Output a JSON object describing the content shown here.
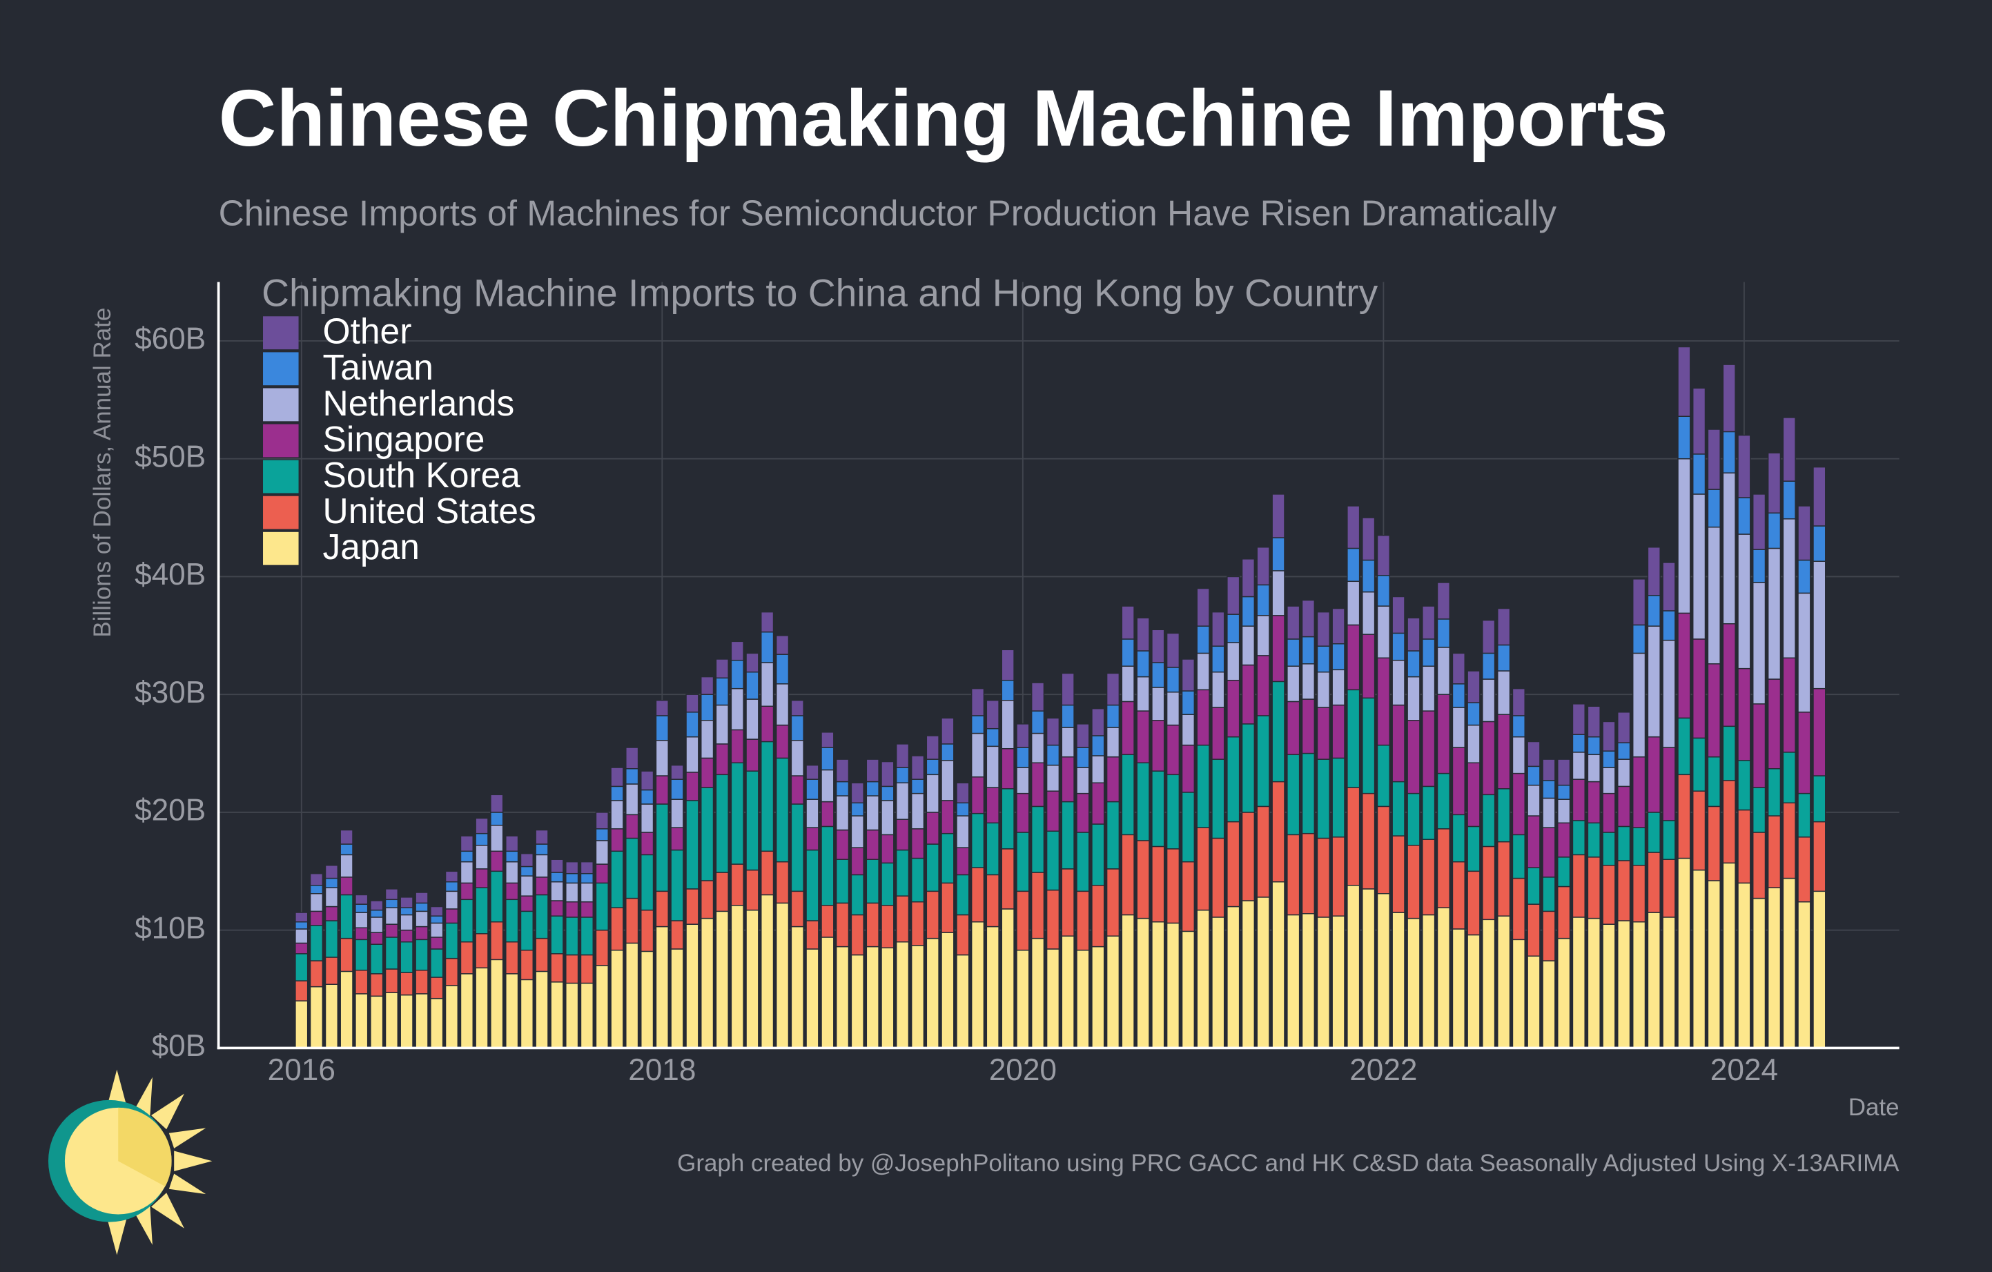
{
  "chart_data": {
    "type": "stacked_bar",
    "title": "Chinese Chipmaking Machine Imports",
    "subtitle": "Chinese Imports of Machines for Semiconductor Production Have Risen Dramatically",
    "legend_title": "Chipmaking Machine Imports to China and Hong Kong by Country",
    "ylabel": "Billions of Dollars, Annual Rate",
    "xlabel": "Date",
    "caption": "Graph created by @JosephPolitano using PRC GACC and HK C&SD data Seasonally Adjusted Using X-13ARIMA",
    "legend": "upper left",
    "grid": true,
    "xlim": [
      2015.54,
      2024.86
    ],
    "xticks": [
      2016,
      2018,
      2020,
      2022,
      2024
    ],
    "ylim": [
      0,
      65
    ],
    "yticks": [
      {
        "value": 0,
        "label": "$0B"
      },
      {
        "value": 10,
        "label": "$10B"
      },
      {
        "value": 20,
        "label": "$20B"
      },
      {
        "value": 30,
        "label": "$30B"
      },
      {
        "value": 40,
        "label": "$40B"
      },
      {
        "value": 50,
        "label": "$50B"
      },
      {
        "value": 60,
        "label": "$60B"
      }
    ],
    "x": [
      2016,
      2016.083,
      2016.167,
      2016.25,
      2016.333,
      2016.417,
      2016.5,
      2016.583,
      2016.667,
      2016.75,
      2016.833,
      2016.917,
      2017,
      2017.083,
      2017.167,
      2017.25,
      2017.333,
      2017.417,
      2017.5,
      2017.583,
      2017.667,
      2017.75,
      2017.833,
      2017.917,
      2018,
      2018.083,
      2018.167,
      2018.25,
      2018.333,
      2018.417,
      2018.5,
      2018.583,
      2018.667,
      2018.75,
      2018.833,
      2018.917,
      2019,
      2019.083,
      2019.167,
      2019.25,
      2019.333,
      2019.417,
      2019.5,
      2019.583,
      2019.667,
      2019.75,
      2019.833,
      2019.917,
      2020,
      2020.083,
      2020.167,
      2020.25,
      2020.333,
      2020.417,
      2020.5,
      2020.583,
      2020.667,
      2020.75,
      2020.833,
      2020.917,
      2021,
      2021.083,
      2021.167,
      2021.25,
      2021.333,
      2021.417,
      2021.5,
      2021.583,
      2021.667,
      2021.75,
      2021.833,
      2021.917,
      2022,
      2022.083,
      2022.167,
      2022.25,
      2022.333,
      2022.417,
      2022.5,
      2022.583,
      2022.667,
      2022.75,
      2022.833,
      2022.917,
      2023,
      2023.083,
      2023.167,
      2023.25,
      2023.333,
      2023.417,
      2023.5,
      2023.583,
      2023.667,
      2023.75,
      2023.833,
      2023.917,
      2024,
      2024.083,
      2024.167,
      2024.25,
      2024.333,
      2024.417
    ],
    "series": [
      {
        "name": "Japan",
        "color": "#fde78c",
        "values": [
          4.0,
          5.2,
          5.4,
          6.5,
          4.6,
          4.4,
          4.7,
          4.5,
          4.6,
          4.2,
          5.3,
          6.3,
          6.8,
          7.5,
          6.3,
          5.8,
          6.5,
          5.6,
          5.5,
          5.5,
          7.0,
          8.3,
          8.9,
          8.2,
          10.3,
          8.4,
          10.5,
          11.0,
          11.6,
          12.1,
          11.7,
          13.0,
          12.3,
          10.3,
          8.4,
          9.4,
          8.6,
          7.9,
          8.6,
          8.5,
          9.0,
          8.7,
          9.3,
          9.8,
          7.9,
          10.7,
          10.3,
          11.8,
          8.3,
          9.3,
          8.4,
          9.5,
          8.3,
          8.6,
          9.5,
          11.3,
          11.0,
          10.7,
          10.6,
          9.9,
          11.7,
          11.1,
          12.0,
          12.5,
          12.8,
          14.1,
          11.3,
          11.4,
          11.1,
          11.2,
          13.8,
          13.5,
          13.1,
          11.5,
          11.0,
          11.3,
          11.9,
          10.1,
          9.6,
          10.9,
          11.2,
          9.2,
          7.8,
          7.4,
          9.3,
          11.1,
          11.0,
          10.5,
          10.8,
          10.7,
          11.5,
          11.1,
          16.1,
          15.1,
          14.2,
          15.7,
          14.0,
          12.7,
          13.6,
          14.4,
          12.4,
          13.3
        ]
      },
      {
        "name": "United States",
        "color": "#ec5f50",
        "values": [
          1.7,
          2.2,
          2.3,
          2.8,
          2.0,
          1.9,
          2.0,
          1.9,
          2.0,
          1.8,
          2.3,
          2.7,
          2.9,
          3.2,
          2.7,
          2.5,
          2.8,
          2.4,
          2.4,
          2.4,
          3.0,
          3.6,
          3.8,
          3.5,
          3.0,
          2.4,
          3.0,
          3.2,
          3.3,
          3.5,
          3.4,
          3.7,
          3.5,
          3.0,
          2.4,
          2.7,
          3.7,
          3.4,
          3.7,
          3.6,
          3.9,
          3.7,
          4.0,
          4.2,
          3.4,
          4.6,
          4.4,
          5.1,
          5.0,
          5.6,
          5.0,
          5.7,
          5.0,
          5.2,
          5.7,
          6.8,
          6.6,
          6.4,
          6.3,
          5.9,
          7.0,
          6.7,
          7.2,
          7.5,
          7.7,
          8.5,
          6.8,
          6.8,
          6.7,
          6.7,
          8.3,
          8.1,
          7.4,
          6.5,
          6.2,
          6.4,
          6.7,
          5.7,
          5.4,
          6.2,
          6.3,
          5.2,
          4.4,
          4.2,
          4.4,
          5.3,
          5.2,
          5.0,
          5.1,
          4.8,
          5.1,
          4.9,
          7.1,
          6.7,
          6.3,
          7.0,
          6.2,
          5.6,
          6.1,
          6.4,
          5.5,
          5.9
        ]
      },
      {
        "name": "South Korea",
        "color": "#0aa39a",
        "values": [
          2.3,
          3.0,
          3.1,
          3.7,
          2.6,
          2.5,
          2.7,
          2.6,
          2.6,
          2.4,
          3.0,
          3.6,
          3.9,
          4.3,
          3.6,
          3.3,
          3.7,
          3.2,
          3.2,
          3.2,
          4.0,
          4.8,
          5.1,
          4.7,
          7.4,
          6.0,
          7.5,
          7.9,
          8.3,
          8.6,
          8.4,
          9.3,
          8.8,
          7.4,
          6.0,
          6.7,
          3.7,
          3.4,
          3.7,
          3.6,
          3.9,
          3.7,
          4.0,
          4.2,
          3.4,
          4.6,
          4.4,
          5.1,
          5.0,
          5.6,
          5.0,
          5.7,
          5.0,
          5.2,
          5.7,
          6.8,
          6.6,
          6.4,
          6.3,
          5.9,
          7.0,
          6.7,
          7.2,
          7.5,
          7.7,
          8.5,
          6.8,
          6.8,
          6.7,
          6.7,
          8.3,
          8.1,
          5.2,
          4.6,
          4.4,
          4.5,
          4.7,
          4.0,
          3.8,
          4.4,
          4.5,
          3.7,
          3.1,
          2.9,
          2.5,
          2.9,
          2.9,
          2.8,
          2.9,
          3.2,
          3.4,
          3.3,
          4.8,
          4.5,
          4.2,
          4.6,
          4.2,
          3.8,
          4.0,
          4.3,
          3.7,
          3.9
        ]
      },
      {
        "name": "Singapore",
        "color": "#9b2f8e",
        "values": [
          0.9,
          1.2,
          1.2,
          1.5,
          1.0,
          1.0,
          1.1,
          1.0,
          1.1,
          1.0,
          1.2,
          1.4,
          1.6,
          1.7,
          1.4,
          1.3,
          1.5,
          1.3,
          1.3,
          1.3,
          1.6,
          1.9,
          2.0,
          1.9,
          2.4,
          1.9,
          2.4,
          2.5,
          2.6,
          2.8,
          2.7,
          3.0,
          2.8,
          2.4,
          1.9,
          2.1,
          2.5,
          2.3,
          2.5,
          2.4,
          2.6,
          2.5,
          2.7,
          2.8,
          2.3,
          3.1,
          3.0,
          3.4,
          3.3,
          3.7,
          3.4,
          3.8,
          3.3,
          3.5,
          3.8,
          4.5,
          4.4,
          4.3,
          4.2,
          4.0,
          4.7,
          4.4,
          4.8,
          5.0,
          5.1,
          5.6,
          4.5,
          4.6,
          4.4,
          4.5,
          5.5,
          5.4,
          7.4,
          6.5,
          6.2,
          6.4,
          6.7,
          5.7,
          5.4,
          6.2,
          6.3,
          5.2,
          4.4,
          4.2,
          2.9,
          3.5,
          3.5,
          3.3,
          3.4,
          6.0,
          6.4,
          6.2,
          8.9,
          8.4,
          7.9,
          8.7,
          7.8,
          7.1,
          7.6,
          8.0,
          6.9,
          7.4
        ]
      },
      {
        "name": "Netherlands",
        "color": "#a9b0de",
        "values": [
          1.2,
          1.5,
          1.6,
          1.9,
          1.3,
          1.3,
          1.4,
          1.3,
          1.3,
          1.2,
          1.5,
          1.8,
          2.0,
          2.2,
          1.8,
          1.7,
          1.9,
          1.6,
          1.6,
          1.6,
          2.0,
          2.4,
          2.6,
          2.4,
          3.0,
          2.4,
          3.0,
          3.2,
          3.3,
          3.5,
          3.4,
          3.7,
          3.5,
          3.0,
          2.4,
          2.7,
          2.9,
          2.7,
          2.9,
          2.9,
          3.1,
          3.0,
          3.2,
          3.4,
          2.7,
          3.7,
          3.5,
          4.1,
          2.2,
          2.5,
          2.2,
          2.5,
          2.2,
          2.3,
          2.5,
          3.0,
          2.9,
          2.8,
          2.8,
          2.6,
          3.1,
          3.0,
          3.2,
          3.3,
          3.4,
          3.8,
          3.0,
          3.0,
          3.0,
          3.0,
          3.7,
          3.6,
          4.4,
          3.8,
          3.7,
          3.8,
          4.0,
          3.4,
          3.2,
          3.6,
          3.7,
          3.1,
          2.6,
          2.5,
          2.0,
          2.3,
          2.3,
          2.2,
          2.3,
          8.8,
          9.4,
          9.1,
          13.1,
          12.3,
          11.6,
          12.8,
          11.4,
          10.3,
          11.1,
          11.8,
          10.1,
          10.8
        ]
      },
      {
        "name": "Taiwan",
        "color": "#3a87dd",
        "values": [
          0.6,
          0.7,
          0.8,
          0.9,
          0.7,
          0.6,
          0.7,
          0.6,
          0.7,
          0.6,
          0.8,
          0.9,
          1.0,
          1.1,
          0.9,
          0.8,
          0.9,
          0.8,
          0.8,
          0.8,
          1.0,
          1.2,
          1.3,
          1.2,
          2.1,
          1.7,
          2.1,
          2.2,
          2.3,
          2.4,
          2.3,
          2.6,
          2.5,
          2.1,
          1.7,
          1.9,
          1.2,
          1.1,
          1.2,
          1.2,
          1.3,
          1.2,
          1.3,
          1.4,
          1.1,
          1.5,
          1.5,
          1.7,
          1.7,
          1.9,
          1.7,
          1.9,
          1.7,
          1.7,
          1.9,
          2.3,
          2.2,
          2.1,
          2.1,
          2.0,
          2.3,
          2.2,
          2.4,
          2.5,
          2.6,
          2.8,
          2.3,
          2.3,
          2.2,
          2.2,
          2.8,
          2.7,
          2.6,
          2.3,
          2.2,
          2.3,
          2.4,
          2.0,
          1.9,
          2.2,
          2.2,
          1.8,
          1.6,
          1.5,
          1.2,
          1.5,
          1.5,
          1.4,
          1.4,
          2.4,
          2.6,
          2.5,
          3.6,
          3.4,
          3.2,
          3.5,
          3.1,
          2.8,
          3.0,
          3.2,
          2.8,
          3.0
        ]
      },
      {
        "name": "Other",
        "color": "#6c4e9a",
        "values": [
          0.8,
          1.0,
          1.1,
          1.2,
          0.8,
          0.8,
          0.9,
          0.9,
          0.9,
          0.8,
          0.9,
          1.3,
          1.3,
          1.5,
          1.3,
          1.1,
          1.2,
          1.1,
          1.0,
          1.0,
          1.4,
          1.6,
          1.8,
          1.6,
          1.3,
          1.2,
          1.5,
          1.5,
          1.6,
          1.6,
          1.6,
          1.7,
          1.6,
          1.3,
          1.2,
          1.3,
          1.9,
          1.7,
          1.9,
          2.1,
          2.0,
          2.0,
          2.0,
          2.2,
          1.7,
          2.3,
          2.4,
          2.6,
          2.0,
          2.4,
          2.3,
          2.7,
          2.0,
          2.3,
          2.7,
          2.8,
          2.8,
          2.8,
          2.9,
          2.7,
          3.2,
          2.9,
          3.2,
          3.2,
          3.2,
          3.7,
          2.8,
          3.1,
          2.9,
          3.0,
          3.6,
          3.6,
          3.4,
          3.1,
          2.8,
          2.8,
          3.1,
          2.6,
          2.7,
          2.8,
          3.1,
          2.3,
          2.1,
          1.8,
          2.2,
          2.6,
          2.6,
          2.5,
          2.6,
          3.9,
          4.1,
          4.1,
          5.9,
          5.6,
          5.1,
          5.7,
          5.3,
          4.7,
          5.1,
          5.4,
          4.6,
          5.0
        ]
      }
    ]
  }
}
